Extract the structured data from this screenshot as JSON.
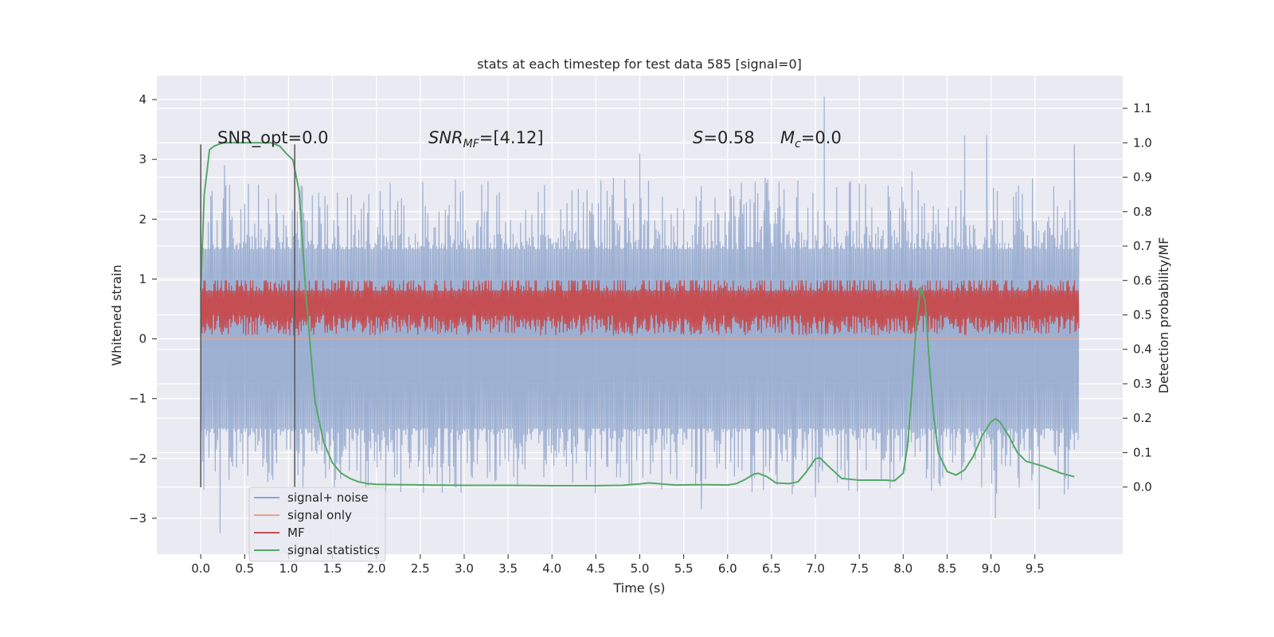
{
  "chart_data": {
    "type": "line",
    "title": "stats at each timestep for test data 585 [signal=0]",
    "xlabel": "Time (s)",
    "ylabel": "Whitened strain",
    "y2label": "Detection probability/MF",
    "xlim": [
      -0.5,
      10.5
    ],
    "ylim": [
      -3.6,
      4.4
    ],
    "y2lim": [
      -0.195,
      1.195
    ],
    "x_ticks": [
      "0.0",
      "0.5",
      "1.0",
      "1.5",
      "2.0",
      "2.5",
      "3.0",
      "3.5",
      "4.0",
      "4.5",
      "5.0",
      "5.5",
      "6.0",
      "6.5",
      "7.0",
      "7.5",
      "8.0",
      "8.5",
      "9.0",
      "9.5"
    ],
    "y_ticks": [
      "−3",
      "−2",
      "−1",
      "0",
      "1",
      "2",
      "3",
      "4"
    ],
    "y2_ticks": [
      "0.0",
      "0.1",
      "0.2",
      "0.3",
      "0.4",
      "0.5",
      "0.6",
      "0.7",
      "0.8",
      "0.9",
      "1.0",
      "1.1"
    ],
    "grid": true,
    "legend_position": "lower-left",
    "annotations": {
      "snr_opt": "SNR_opt=0.0",
      "snr_mf_base": "SNR",
      "snr_mf_sub": "MF",
      "snr_mf_value": "=[4.12]",
      "s_var": "S",
      "s_value": "=0.58",
      "mc_var": "M",
      "mc_sub": "c",
      "mc_value": "=0.0"
    },
    "vlines": [
      0.0,
      1.07
    ],
    "vline_range": [
      -2.48,
      3.25
    ],
    "series": [
      {
        "name": "signal+ noise",
        "color": "#8fa6cc",
        "kind": "noise",
        "x_range": [
          0.0,
          10.0
        ],
        "band": [
          -1.5,
          1.5
        ],
        "peaks": [
          [
            0.0,
            2.5
          ],
          [
            0.27,
            2.9
          ],
          [
            1.07,
            2.35
          ],
          [
            5.0,
            3.1
          ],
          [
            7.1,
            4.05
          ],
          [
            7.5,
            2.6
          ],
          [
            8.1,
            2.8
          ],
          [
            8.7,
            3.4
          ],
          [
            8.95,
            3.4
          ],
          [
            9.95,
            3.25
          ]
        ],
        "troughs": [
          [
            0.22,
            -3.25
          ],
          [
            1.07,
            -2.35
          ],
          [
            5.7,
            -2.85
          ],
          [
            7.0,
            -2.65
          ],
          [
            9.05,
            -3.0
          ],
          [
            9.55,
            -2.85
          ]
        ]
      },
      {
        "name": "signal only",
        "color": "#e9a487",
        "kind": "flat",
        "x_range": [
          0.0,
          10.0
        ],
        "value": 0.0
      },
      {
        "name": "MF",
        "color": "#c44e52",
        "kind": "noise_y2",
        "x_range": [
          0.0,
          10.0
        ],
        "center": 0.5,
        "band": [
          0.44,
          0.62
        ],
        "max": 0.6
      },
      {
        "name": "signal statistics",
        "color": "#55a868",
        "kind": "curve_y2",
        "x": [
          0.0,
          0.04,
          0.1,
          0.15,
          0.25,
          0.4,
          0.6,
          0.8,
          0.9,
          0.97,
          1.05,
          1.12,
          1.2,
          1.3,
          1.4,
          1.5,
          1.6,
          1.7,
          1.8,
          1.9,
          2.0,
          2.3,
          2.6,
          3.0,
          3.5,
          4.0,
          4.5,
          4.8,
          5.0,
          5.1,
          5.2,
          5.4,
          5.7,
          6.0,
          6.1,
          6.2,
          6.3,
          6.35,
          6.45,
          6.55,
          6.7,
          6.8,
          6.9,
          7.0,
          7.05,
          7.15,
          7.3,
          7.5,
          7.8,
          7.9,
          8.0,
          8.05,
          8.1,
          8.15,
          8.2,
          8.25,
          8.3,
          8.35,
          8.4,
          8.5,
          8.6,
          8.7,
          8.8,
          8.9,
          9.0,
          9.05,
          9.1,
          9.2,
          9.3,
          9.4,
          9.6,
          9.8,
          9.95
        ],
        "values": [
          0.57,
          0.85,
          0.98,
          0.99,
          1.0,
          1.0,
          1.0,
          1.0,
          0.99,
          0.97,
          0.95,
          0.86,
          0.55,
          0.25,
          0.13,
          0.07,
          0.04,
          0.025,
          0.015,
          0.01,
          0.008,
          0.007,
          0.006,
          0.005,
          0.005,
          0.004,
          0.004,
          0.005,
          0.009,
          0.012,
          0.01,
          0.006,
          0.007,
          0.006,
          0.01,
          0.022,
          0.038,
          0.04,
          0.03,
          0.012,
          0.01,
          0.015,
          0.045,
          0.082,
          0.085,
          0.06,
          0.025,
          0.02,
          0.02,
          0.018,
          0.04,
          0.12,
          0.28,
          0.48,
          0.58,
          0.54,
          0.35,
          0.2,
          0.1,
          0.045,
          0.035,
          0.05,
          0.09,
          0.15,
          0.19,
          0.198,
          0.19,
          0.15,
          0.1,
          0.075,
          0.06,
          0.04,
          0.03
        ]
      }
    ]
  }
}
